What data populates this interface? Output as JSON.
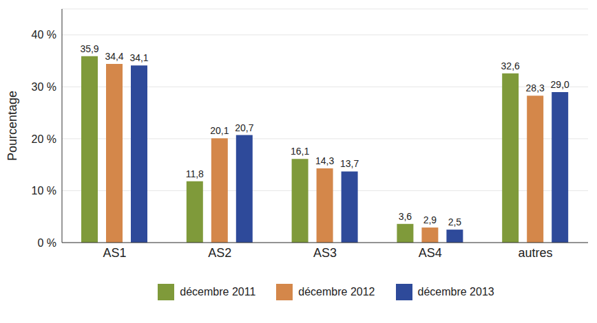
{
  "chart_data": {
    "type": "bar",
    "y_label": "Pourcentage",
    "categories": [
      "AS1",
      "AS2",
      "AS3",
      "AS4",
      "autres"
    ],
    "series": [
      {
        "name": "décembre 2011",
        "color": "#7f9a3a",
        "values": [
          35.9,
          11.8,
          16.1,
          3.6,
          32.6
        ],
        "value_labels": [
          "35,9",
          "11,8",
          "16,1",
          "3,6",
          "32,6"
        ]
      },
      {
        "name": "décembre 2012",
        "color": "#d4874a",
        "values": [
          34.4,
          20.1,
          14.3,
          2.9,
          28.3
        ],
        "value_labels": [
          "34,4",
          "20,1",
          "14,3",
          "2,9",
          "28,3"
        ]
      },
      {
        "name": "décembre 2013",
        "color": "#2e4a9a",
        "values": [
          34.1,
          20.7,
          13.7,
          2.5,
          29.0
        ],
        "value_labels": [
          "34,1",
          "20,7",
          "13,7",
          "2,5",
          "29,0"
        ]
      }
    ],
    "ylim": [
      0,
      45
    ],
    "yticks": [
      {
        "value": 0,
        "label": "0 %"
      },
      {
        "value": 10,
        "label": "10 %"
      },
      {
        "value": 20,
        "label": "20 %"
      },
      {
        "value": 30,
        "label": "30 %"
      },
      {
        "value": 40,
        "label": "40 %"
      }
    ],
    "grid": true,
    "data_labels": true,
    "legend": "bottom"
  }
}
